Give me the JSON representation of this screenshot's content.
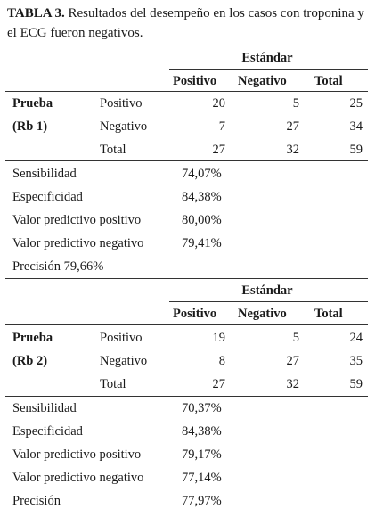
{
  "caption": {
    "label": "TABLA 3.",
    "text": "Resultados del desempeño en los casos con troponina y el ECG fueron negativos."
  },
  "tables": [
    {
      "standard_header": "Estándar",
      "col_headers": [
        "Positivo",
        "Negativo",
        "Total"
      ],
      "test_label": "Prueba",
      "test_id": "(Rb 1)",
      "rows": [
        {
          "label": "Positivo",
          "values": [
            "20",
            "5",
            "25"
          ]
        },
        {
          "label": "Negativo",
          "values": [
            "7",
            "27",
            "34"
          ]
        },
        {
          "label": "Total",
          "values": [
            "27",
            "32",
            "59"
          ]
        }
      ],
      "metrics": [
        {
          "label": "Sensibilidad",
          "value": "74,07%"
        },
        {
          "label": "Especificidad",
          "value": "84,38%"
        },
        {
          "label": "Valor predictivo positivo",
          "value": "80,00%"
        },
        {
          "label": "Valor predictivo negativo",
          "value": "79,41%"
        }
      ],
      "precision": "Precisión 79,66%"
    },
    {
      "standard_header": "Estándar",
      "col_headers": [
        "Positivo",
        "Negativo",
        "Total"
      ],
      "test_label": "Prueba",
      "test_id": "(Rb 2)",
      "rows": [
        {
          "label": "Positivo",
          "values": [
            "19",
            "5",
            "24"
          ]
        },
        {
          "label": "Negativo",
          "values": [
            "8",
            "27",
            "35"
          ]
        },
        {
          "label": "Total",
          "values": [
            "27",
            "32",
            "59"
          ]
        }
      ],
      "metrics": [
        {
          "label": "Sensibilidad",
          "value": "70,37%"
        },
        {
          "label": "Especificidad",
          "value": "84,38%"
        },
        {
          "label": "Valor predictivo positivo",
          "value": "79,17%"
        },
        {
          "label": "Valor predictivo negativo",
          "value": "77,14%"
        },
        {
          "label": "Precisión",
          "value": "77,97%"
        }
      ]
    }
  ]
}
